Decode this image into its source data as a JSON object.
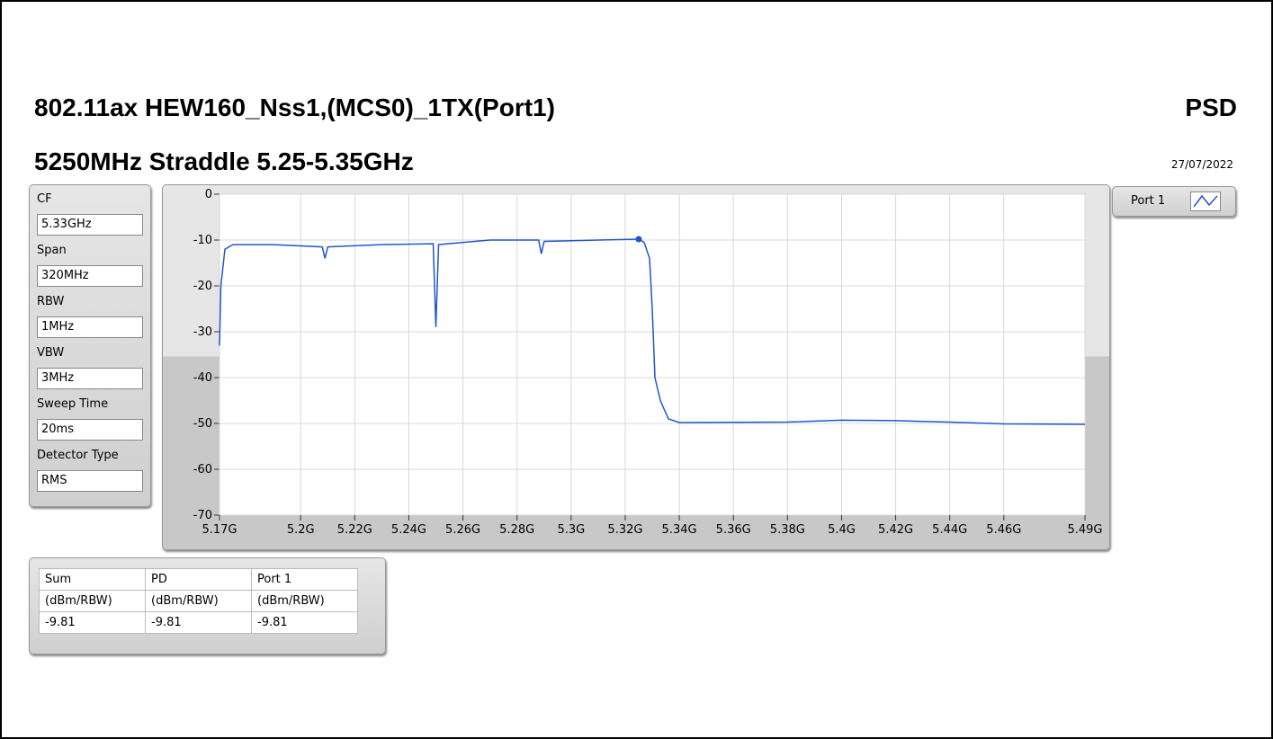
{
  "header": {
    "title": "802.11ax HEW160_Nss1,(MCS0)_1TX(Port1)",
    "subtitle": "5250MHz Straddle 5.25-5.35GHz",
    "label": "PSD",
    "date": "27/07/2022"
  },
  "settings": [
    {
      "label": "CF",
      "value": "5.33GHz"
    },
    {
      "label": "Span",
      "value": "320MHz"
    },
    {
      "label": "RBW",
      "value": "1MHz"
    },
    {
      "label": "VBW",
      "value": "3MHz"
    },
    {
      "label": "Sweep Time",
      "value": "20ms"
    },
    {
      "label": "Detector Type",
      "value": "RMS"
    }
  ],
  "table": {
    "rows": [
      [
        "Sum",
        "PD",
        "Port 1"
      ],
      [
        "(dBm/RBW)",
        "(dBm/RBW)",
        "(dBm/RBW)"
      ],
      [
        "-9.81",
        "-9.81",
        "-9.81"
      ]
    ]
  },
  "chart_data": {
    "type": "line",
    "x": [
      5.17,
      5.1705,
      5.172,
      5.175,
      5.19,
      5.208,
      5.209,
      5.21,
      5.23,
      5.249,
      5.25,
      5.251,
      5.27,
      5.288,
      5.289,
      5.29,
      5.31,
      5.325,
      5.327,
      5.329,
      5.33,
      5.331,
      5.333,
      5.336,
      5.34,
      5.38,
      5.4,
      5.42,
      5.44,
      5.46,
      5.49
    ],
    "series": [
      {
        "name": "Port 1",
        "color": "#2255cc",
        "values": [
          -33,
          -20,
          -12,
          -11,
          -11,
          -11.5,
          -14,
          -11.5,
          -11,
          -10.8,
          -29,
          -11,
          -10,
          -10,
          -13,
          -10.3,
          -10,
          -9.8,
          -10.5,
          -14,
          -25,
          -40,
          -45,
          -49,
          -49.8,
          -49.7,
          -49.3,
          -49.4,
          -49.7,
          -50.1,
          -50.2
        ]
      }
    ],
    "marker": {
      "x": 5.325,
      "y": -9.81
    },
    "xlim": [
      5.17,
      5.49
    ],
    "ylim": [
      -70,
      0
    ],
    "xticks": [
      {
        "value": 5.17,
        "label": "5.17G"
      },
      {
        "value": 5.2,
        "label": "5.2G"
      },
      {
        "value": 5.22,
        "label": "5.22G"
      },
      {
        "value": 5.24,
        "label": "5.24G"
      },
      {
        "value": 5.26,
        "label": "5.26G"
      },
      {
        "value": 5.28,
        "label": "5.28G"
      },
      {
        "value": 5.3,
        "label": "5.3G"
      },
      {
        "value": 5.32,
        "label": "5.32G"
      },
      {
        "value": 5.34,
        "label": "5.34G"
      },
      {
        "value": 5.36,
        "label": "5.36G"
      },
      {
        "value": 5.38,
        "label": "5.38G"
      },
      {
        "value": 5.4,
        "label": "5.4G"
      },
      {
        "value": 5.42,
        "label": "5.42G"
      },
      {
        "value": 5.44,
        "label": "5.44G"
      },
      {
        "value": 5.46,
        "label": "5.46G"
      },
      {
        "value": 5.49,
        "label": "5.49G"
      }
    ],
    "yticks": [
      0,
      -10,
      -20,
      -30,
      -40,
      -50,
      -60,
      -70
    ],
    "grid": true
  }
}
